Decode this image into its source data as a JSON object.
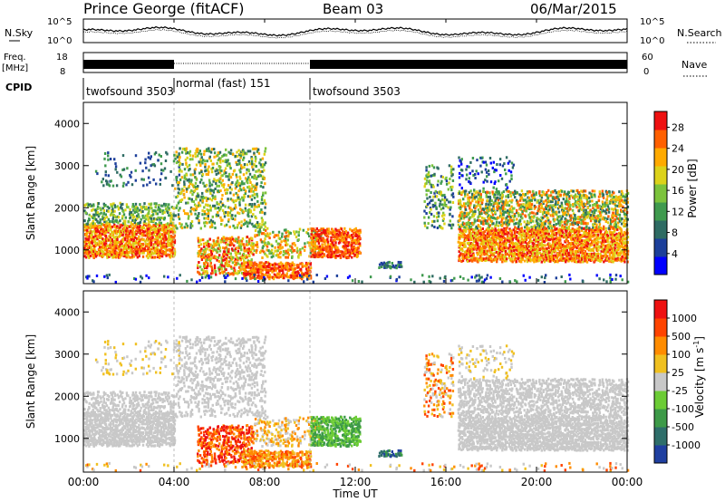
{
  "header": {
    "station": "Prince George (fitACF)",
    "beam": "Beam 03",
    "date": "06/Mar/2015"
  },
  "panels": {
    "nsky": {
      "label": "N.Sky",
      "tick_top": "10^5",
      "tick_bottom": "10^0"
    },
    "nsearch": {
      "label": "N.Search",
      "tick_top": "10^5",
      "tick_bottom": "10^0"
    },
    "freq": {
      "label_line1": "Freq.",
      "label_line2": "[MHz]",
      "tick_top": "18",
      "tick_bottom": "8"
    },
    "nave": {
      "label": "Nave",
      "tick_top": "60",
      "tick_bottom": "0"
    },
    "cpid": {
      "label": "CPID",
      "segments": [
        {
          "start_ut": "00:00",
          "end_ut": "04:00",
          "text": "twofsound 3503"
        },
        {
          "start_ut": "04:00",
          "end_ut": "10:00",
          "text": "normal (fast) 151"
        },
        {
          "start_ut": "10:00",
          "end_ut": "24:00",
          "text": "twofsound 3503"
        }
      ]
    }
  },
  "chart_data": [
    {
      "type": "heatmap",
      "name": "power",
      "ylabel": "Slant Range [km]",
      "yticks": [
        "1000",
        "2000",
        "3000",
        "4000"
      ],
      "ylim": [
        200,
        4500
      ],
      "colorbar_label": "Power [dB]",
      "colorbar_ticks": [
        "4",
        "8",
        "12",
        "16",
        "20",
        "24",
        "28"
      ],
      "colorbar_range": [
        0,
        31
      ],
      "colorbar_colors": [
        "#0000ff",
        "#1c3f9a",
        "#2e6b63",
        "#3f9a4e",
        "#7cc33c",
        "#dcd21a",
        "#ffaa00",
        "#ff6000",
        "#ee1111"
      ]
    },
    {
      "type": "heatmap",
      "name": "velocity",
      "ylabel": "Slant Range [km]",
      "yticks": [
        "1000",
        "2000",
        "3000",
        "4000"
      ],
      "ylim": [
        200,
        4500
      ],
      "colorbar_label": "Velocity [m s^-1]",
      "colorbar_ticks": [
        "1000",
        "500",
        "100",
        "25",
        "-25",
        "-100",
        "-500",
        "-1000"
      ],
      "colorbar_colors": [
        "#1f3fa0",
        "#2e6e6a",
        "#3d9a48",
        "#6ccc35",
        "#c8c8c8",
        "#f0c020",
        "#ff8c00",
        "#ff4400",
        "#ee1111"
      ]
    }
  ],
  "xaxis": {
    "label": "Time UT",
    "ticks": [
      "00:00",
      "04:00",
      "08:00",
      "12:00",
      "16:00",
      "20:00",
      "00:00"
    ]
  },
  "colors": {
    "nsky": "#000000",
    "grid_dash": "#bbbbbb"
  }
}
